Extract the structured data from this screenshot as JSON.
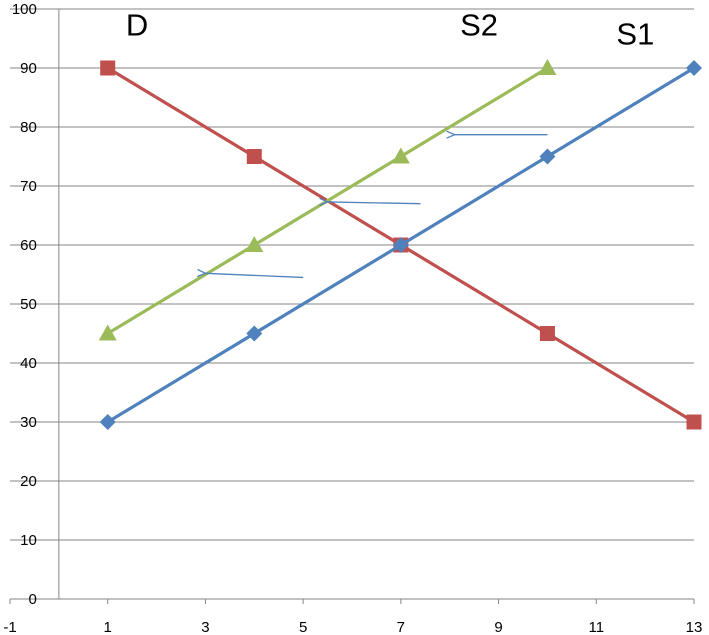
{
  "chart_data": {
    "type": "scatter",
    "xlim": [
      -1,
      13
    ],
    "ylim": [
      0,
      100
    ],
    "x_ticks": [
      -1,
      1,
      3,
      5,
      7,
      9,
      11,
      13
    ],
    "x_tick_labels": [
      "-1",
      "1",
      "3",
      "5",
      "7",
      "9",
      "11",
      "13"
    ],
    "y_ticks": [
      0,
      10,
      20,
      30,
      40,
      50,
      60,
      70,
      80,
      90,
      100
    ],
    "y_tick_labels": [
      "0",
      "10",
      "20",
      "30",
      "40",
      "50",
      "60",
      "70",
      "80",
      "90",
      "100"
    ],
    "horizontal_grid": true,
    "vertical_grid": false,
    "legend": "none",
    "series": [
      {
        "name": "D",
        "color": "#c0504d",
        "marker": "square",
        "points": [
          [
            1,
            90
          ],
          [
            4,
            75
          ],
          [
            7,
            60
          ],
          [
            10,
            45
          ],
          [
            13,
            30
          ]
        ]
      },
      {
        "name": "S2",
        "color": "#9bbb59",
        "marker": "triangle",
        "points": [
          [
            1,
            45
          ],
          [
            4,
            60
          ],
          [
            7,
            75
          ],
          [
            10,
            90
          ]
        ]
      },
      {
        "name": "S1",
        "color": "#4f81bd",
        "marker": "diamond",
        "points": [
          [
            1,
            30
          ],
          [
            4,
            45
          ],
          [
            7,
            60
          ],
          [
            10,
            75
          ],
          [
            13,
            90
          ]
        ]
      }
    ],
    "series_labels": [
      {
        "text": "D",
        "series": "D",
        "at": [
          1.6,
          95.5
        ]
      },
      {
        "text": "S2",
        "series": "S2",
        "at": [
          8.6,
          95.5
        ]
      },
      {
        "text": "S1",
        "series": "S1",
        "at": [
          11.8,
          94
        ]
      }
    ],
    "annotations": [
      {
        "type": "arrow",
        "color": "#4f81bd",
        "from": [
          10,
          78.7
        ],
        "to": [
          8.1,
          78.7
        ]
      },
      {
        "type": "arrow",
        "color": "#4f81bd",
        "from": [
          7.4,
          67
        ],
        "to": [
          5.5,
          67.3
        ]
      },
      {
        "type": "arrow",
        "color": "#4f81bd",
        "from": [
          5,
          54.5
        ],
        "to": [
          3,
          55.2
        ]
      }
    ]
  }
}
